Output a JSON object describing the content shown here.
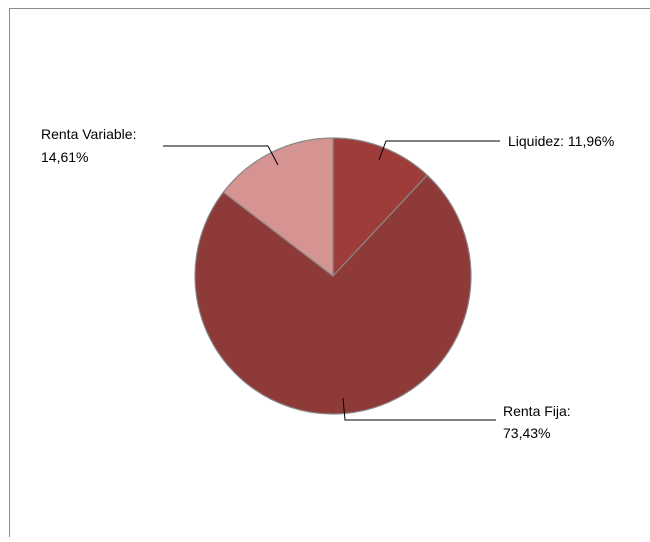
{
  "chart_data": {
    "type": "pie",
    "title": "",
    "slices": [
      {
        "label": "Liquidez",
        "value": 11.96,
        "display": "11,96%",
        "color": "#9e3c3a"
      },
      {
        "label": "Renta Fija",
        "value": 73.43,
        "display": "73,43%",
        "color": "#8e3a38"
      },
      {
        "label": "Renta Variable",
        "value": 14.61,
        "display": "14,61%",
        "color": "#d59391"
      }
    ],
    "start_angle_deg": 0,
    "direction": "clockwise",
    "legend": "none",
    "slice_border_color": "#888888"
  },
  "labels": {
    "liquidez_line1": "Liquidez: 11,96%",
    "renta_fija_line1": "Renta Fija:",
    "renta_fija_line2": "73,43%",
    "renta_variable_line1": "Renta Variable:",
    "renta_variable_line2": "14,61%"
  },
  "colors": {
    "frame_border": "#8c8c8c",
    "leader_line": "#000000"
  }
}
